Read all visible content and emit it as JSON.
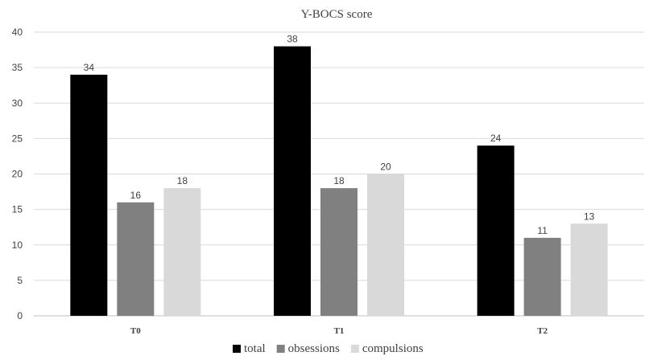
{
  "chart_data": {
    "type": "bar",
    "title": "Y-BOCS score",
    "xlabel": "",
    "ylabel": "",
    "categories": [
      "T0",
      "T1",
      "T2"
    ],
    "series": [
      {
        "name": "total",
        "values": [
          34,
          38,
          24
        ],
        "color": "#000000"
      },
      {
        "name": "obsessions",
        "values": [
          16,
          18,
          11
        ],
        "color": "#808080"
      },
      {
        "name": "compulsions",
        "values": [
          18,
          20,
          13
        ],
        "color": "#d9d9d9"
      }
    ],
    "ylim": [
      0,
      40
    ],
    "yticks": [
      0,
      5,
      10,
      15,
      20,
      25,
      30,
      35,
      40
    ],
    "grid": true,
    "legend_position": "bottom",
    "data_labels": true
  }
}
